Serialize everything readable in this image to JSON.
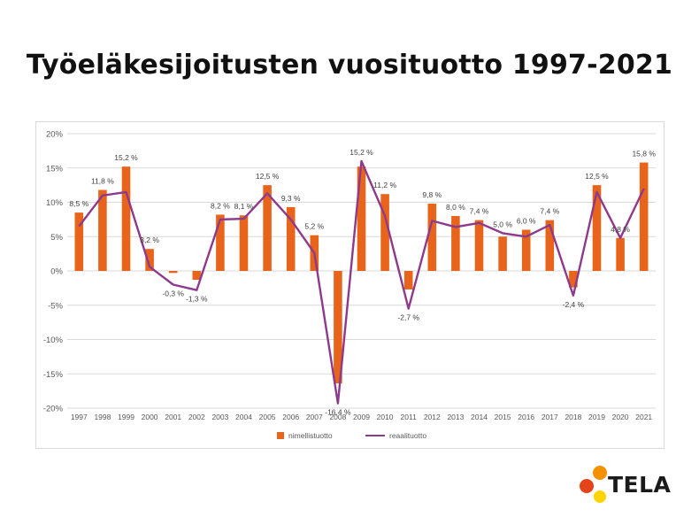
{
  "title": "Työeläkesijoitusten vuosituotto 1997-2021",
  "colors": {
    "bars": "#E8641B",
    "line": "#8E3A8C",
    "grid": "#d9d9d9",
    "axis_text": "#595959",
    "logo_orange": "#F39200",
    "logo_red": "#E5431A",
    "logo_yellow": "#FFD400"
  },
  "logo": {
    "text": "TELA"
  },
  "chart_data": {
    "type": "bar",
    "categories": [
      "1997",
      "1998",
      "1999",
      "2000",
      "2001",
      "2002",
      "2003",
      "2004",
      "2005",
      "2006",
      "2007",
      "2008",
      "2009",
      "2010",
      "2011",
      "2012",
      "2013",
      "2014",
      "2015",
      "2016",
      "2017",
      "2018",
      "2019",
      "2020",
      "2021"
    ],
    "series": [
      {
        "name": "nimellistuotto",
        "type": "bar",
        "values": [
          8.5,
          11.8,
          15.2,
          3.2,
          -0.3,
          -1.3,
          8.2,
          8.1,
          12.5,
          9.3,
          5.2,
          -16.4,
          15.2,
          11.2,
          -2.7,
          9.8,
          8.0,
          7.4,
          5.0,
          6.0,
          7.4,
          -2.4,
          12.5,
          4.8,
          15.8
        ],
        "labels": [
          "8,5 %",
          "11,8 %",
          "15,2 %",
          "3,2 %",
          "-0,3 %",
          "-1,3 %",
          "8,2 %",
          "8,1 %",
          "12,5 %",
          "9,3 %",
          "5,2 %",
          "-16,4 %",
          "15,2 %",
          "11,2 %",
          "-2,7 %",
          "9,8 %",
          "8,0 %",
          "7,4 %",
          "5,0 %",
          "6,0 %",
          "7,4 %",
          "-2,4 %",
          "12,5 %",
          "4,8 %",
          "15,8 %"
        ]
      },
      {
        "name": "reaalituotto",
        "type": "line",
        "values": [
          6.5,
          11.0,
          11.5,
          0.6,
          -2.0,
          -2.8,
          7.5,
          7.6,
          11.3,
          7.5,
          2.6,
          -19.3,
          16.0,
          8.0,
          -5.5,
          7.3,
          6.4,
          7.0,
          5.5,
          5.0,
          6.7,
          -3.6,
          11.5,
          4.8,
          12.0
        ]
      }
    ],
    "y_ticks": [
      20,
      15,
      10,
      5,
      0,
      -5,
      -10,
      -15,
      -20
    ],
    "y_tick_labels": [
      "20%",
      "15%",
      "10%",
      "5%",
      "0%",
      "-5%",
      "-10%",
      "-15%",
      "-20%"
    ],
    "ylim": [
      -20,
      20
    ],
    "xlabel": "",
    "ylabel": "",
    "grid": true,
    "legend": "bottom"
  }
}
